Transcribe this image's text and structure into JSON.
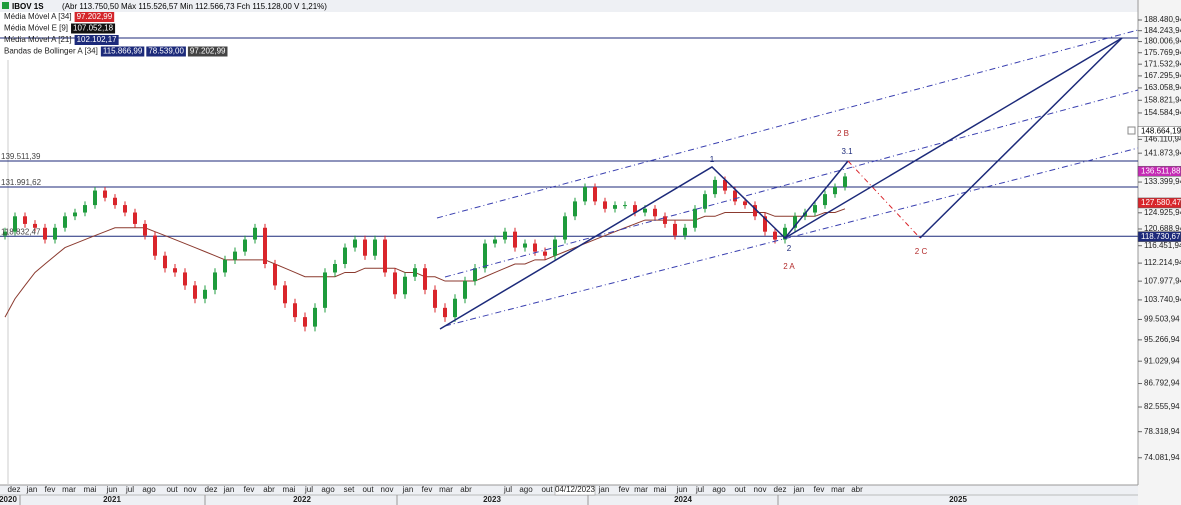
{
  "header": {
    "symbol": "IBOV 1S",
    "ohlc": "(Abr 113.750,50 Máx 115.526,57 Min 112.566,73 Fch 115.128,00 V 1,21%)"
  },
  "legend": [
    {
      "name": "Média Móvel A [34]",
      "values": [
        "97.202,99"
      ],
      "colors": [
        "#d4262b"
      ]
    },
    {
      "name": "Média Móvel E [9]",
      "values": [
        "107.052,18"
      ],
      "colors": [
        "#111111"
      ]
    },
    {
      "name": "Média Móvel A [21]",
      "values": [
        "102.102,17"
      ],
      "colors": [
        "#1c2a7a"
      ]
    },
    {
      "name": "Bandas de Bollinger A [34]",
      "values": [
        "115.866,99",
        "78.539,00",
        "97.202,99"
      ],
      "colors": [
        "#1c2a7a",
        "#1c2a7a",
        "#444444"
      ]
    }
  ],
  "chart_data": {
    "type": "candlestick",
    "log_scale": true,
    "up_color": "#1e9b3c",
    "down_color": "#d9252b",
    "ma_color": "#8b3a2f",
    "ylim": [
      69900,
      196700
    ],
    "yticks": [
      {
        "value": 188480.94,
        "label": "188.480,94"
      },
      {
        "value": 184243.94,
        "label": "184.243,94"
      },
      {
        "value": 180006.94,
        "label": "180.006,94"
      },
      {
        "value": 175769.94,
        "label": "175.769,94"
      },
      {
        "value": 171532.94,
        "label": "171.532,94"
      },
      {
        "value": 167295.94,
        "label": "167.295,94"
      },
      {
        "value": 163058.94,
        "label": "163.058,94"
      },
      {
        "value": 158821.94,
        "label": "158.821,94"
      },
      {
        "value": 154584.94,
        "label": "154.584,94"
      },
      {
        "value": 146110.94,
        "label": "146.110,94"
      },
      {
        "value": 141873.94,
        "label": "141.873,94"
      },
      {
        "value": 133399.94,
        "label": "133.399,94"
      },
      {
        "value": 124925.94,
        "label": "124.925,94"
      },
      {
        "value": 120688.94,
        "label": "120.688,94"
      },
      {
        "value": 116451.94,
        "label": "116.451,94"
      },
      {
        "value": 112214.94,
        "label": "112.214,94"
      },
      {
        "value": 107977.94,
        "label": "107.977,94"
      },
      {
        "value": 103740.94,
        "label": "103.740,94"
      },
      {
        "value": 99503.94,
        "label": "99.503,94"
      },
      {
        "value": 95266.94,
        "label": "95.266,94"
      },
      {
        "value": 91029.94,
        "label": "91.029,94"
      },
      {
        "value": 86792.94,
        "label": "86.792,94"
      },
      {
        "value": 82555.94,
        "label": "82.555,94"
      },
      {
        "value": 78318.94,
        "label": "78.318,94"
      },
      {
        "value": 74081.94,
        "label": "74.081,94"
      }
    ],
    "open": [
      119000,
      120000,
      124000,
      122000,
      121000,
      118000,
      121000,
      124000,
      125000,
      127000,
      131000,
      129000,
      127000,
      125000,
      122000,
      119000,
      114000,
      111000,
      110000,
      107000,
      104000,
      106000,
      110000,
      113000,
      115000,
      118000,
      121000,
      112000,
      107000,
      103000,
      100000,
      98000,
      102000,
      110000,
      112000,
      116000,
      118000,
      114000,
      118000,
      110000,
      105000,
      109000,
      111000,
      106000,
      102000,
      100000,
      104000,
      108000,
      111000,
      117000,
      118000,
      120000,
      116000,
      117000,
      115000,
      114000,
      118000,
      124000,
      128000,
      132000,
      128000,
      126000,
      127000,
      127000,
      125000,
      126000,
      124000,
      122000,
      119000,
      121000,
      126000,
      130000,
      134000,
      131000,
      128000,
      127000,
      124000,
      120000,
      118000,
      121000,
      124000,
      125000,
      127000,
      130000,
      132000
    ],
    "high": [
      121000,
      125000,
      125000,
      123000,
      122000,
      122000,
      125000,
      126000,
      128000,
      132000,
      132000,
      130000,
      128000,
      126000,
      123000,
      120000,
      115000,
      112000,
      111000,
      108000,
      107000,
      111000,
      114000,
      116000,
      119000,
      122000,
      122000,
      113000,
      108000,
      104000,
      101000,
      103000,
      111000,
      113000,
      117000,
      119000,
      119000,
      119000,
      119000,
      111000,
      110000,
      112000,
      112000,
      107000,
      103000,
      105000,
      109000,
      112000,
      118000,
      119000,
      121000,
      121000,
      118000,
      118000,
      116000,
      119000,
      125000,
      129000,
      133000,
      133000,
      129000,
      128000,
      128000,
      128000,
      127000,
      127000,
      125000,
      123000,
      122000,
      127000,
      131000,
      135000,
      135000,
      132000,
      129000,
      128000,
      125000,
      121000,
      122000,
      125000,
      126000,
      128000,
      131000,
      133000,
      136000
    ],
    "low": [
      118000,
      119000,
      121000,
      120000,
      117000,
      117000,
      120000,
      123000,
      124000,
      126000,
      128000,
      126000,
      124000,
      121000,
      118000,
      113000,
      110000,
      109000,
      106000,
      103000,
      103000,
      105000,
      109000,
      112000,
      114000,
      117000,
      111000,
      106000,
      102000,
      99000,
      97000,
      97000,
      101000,
      109000,
      111000,
      115000,
      113000,
      113000,
      109000,
      104000,
      104000,
      108000,
      105000,
      101000,
      99000,
      99000,
      103000,
      107000,
      110000,
      116000,
      117000,
      115000,
      115000,
      114000,
      113000,
      113000,
      117000,
      123000,
      127000,
      127000,
      125000,
      125000,
      126000,
      124000,
      124000,
      123000,
      121000,
      118000,
      118000,
      120000,
      125000,
      129000,
      130000,
      127000,
      126000,
      123000,
      119000,
      117000,
      117000,
      120000,
      123000,
      124000,
      126000,
      129000,
      131000
    ],
    "close": [
      120000,
      124000,
      122000,
      121000,
      118000,
      121000,
      124000,
      125000,
      127000,
      131000,
      129000,
      127000,
      125000,
      122000,
      119000,
      114000,
      111000,
      110000,
      107000,
      104000,
      106000,
      110000,
      113000,
      115000,
      118000,
      121000,
      112000,
      107000,
      103000,
      100000,
      98000,
      102000,
      110000,
      112000,
      116000,
      118000,
      114000,
      118000,
      110000,
      105000,
      109000,
      111000,
      106000,
      102000,
      100000,
      104000,
      108000,
      111000,
      117000,
      118000,
      120000,
      116000,
      117000,
      115000,
      114000,
      118000,
      124000,
      128000,
      132000,
      128000,
      126000,
      127000,
      127000,
      125000,
      126000,
      124000,
      122000,
      119000,
      121000,
      126000,
      130000,
      134000,
      131000,
      128000,
      127000,
      124000,
      120000,
      118000,
      121000,
      124000,
      125000,
      127000,
      130000,
      132000,
      135000
    ],
    "ma_values": [
      100000,
      104000,
      107000,
      110000,
      112000,
      114000,
      116000,
      117000,
      118000,
      119000,
      120000,
      121000,
      121000,
      121000,
      121000,
      120000,
      119000,
      118000,
      117000,
      116000,
      115000,
      114000,
      113000,
      113000,
      113000,
      113000,
      113000,
      112000,
      111000,
      110000,
      109000,
      109000,
      109000,
      109000,
      110000,
      110000,
      111000,
      111000,
      111000,
      111000,
      110000,
      110000,
      109000,
      109000,
      108000,
      108000,
      108000,
      108000,
      109000,
      110000,
      111000,
      112000,
      112000,
      113000,
      113000,
      114000,
      115000,
      116000,
      117000,
      118000,
      119000,
      120000,
      121000,
      122000,
      123000,
      123000,
      123000,
      123000,
      123000,
      123000,
      124000,
      124000,
      125000,
      125000,
      125000,
      125000,
      125000,
      124000,
      124000,
      124000,
      124000,
      124000,
      125000,
      125000,
      126000
    ],
    "levels": [
      {
        "value": 139511.39,
        "label": "139.511,39"
      },
      {
        "value": 131991.62,
        "label": "131.991,62"
      },
      {
        "value": 118832.47,
        "label": "118.832,47"
      }
    ],
    "price_flags": [
      {
        "value": 148664.19,
        "label": "148.664,19",
        "color": "#ffffff"
      },
      {
        "value": 136511.88,
        "label": "136.511,88",
        "color": "#c42bb4"
      },
      {
        "value": 127580.47,
        "label": "127.580,47",
        "color": "#d9252b"
      },
      {
        "value": 118730.67,
        "label": "118.730,67",
        "color": "#1c2a7a"
      }
    ],
    "wave_labels": [
      "1",
      "2",
      "2 A",
      "2 B",
      "3.1",
      "2 C"
    ],
    "months": [
      "dez",
      "jan",
      "fev",
      "mar",
      "mai",
      "jun",
      "jul",
      "ago",
      "out",
      "nov",
      "dez",
      "jan",
      "fev",
      "abr",
      "mai",
      "jul",
      "ago",
      "set",
      "out",
      "nov",
      "jan",
      "fev",
      "mar",
      "abr",
      "jul",
      "ago",
      "out",
      "04/12/2023",
      "jan",
      "fev",
      "mar",
      "mai",
      "jun",
      "jul",
      "ago",
      "out",
      "nov",
      "dez",
      "jan",
      "fev",
      "mar",
      "abr"
    ],
    "years": [
      "2020",
      "2021",
      "2022",
      "2023",
      "2024",
      "2025"
    ]
  }
}
